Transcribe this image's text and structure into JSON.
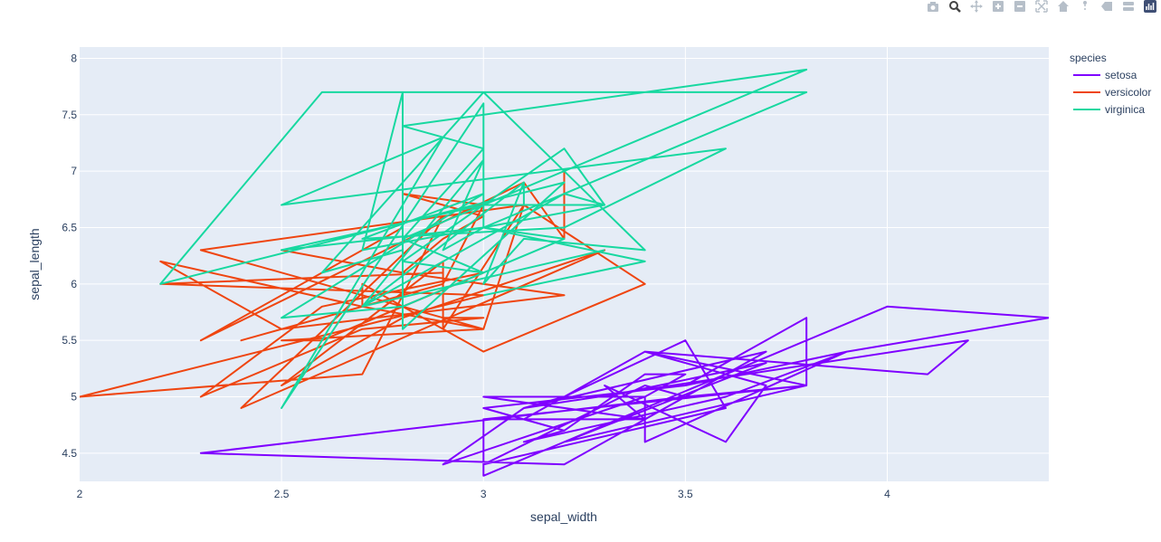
{
  "modebar": {
    "buttons": [
      {
        "icon": "camera-icon"
      },
      {
        "icon": "zoom-icon"
      },
      {
        "icon": "pan-icon"
      },
      {
        "icon": "zoom-in-icon"
      },
      {
        "icon": "zoom-out-icon"
      },
      {
        "icon": "autoscale-icon"
      },
      {
        "icon": "reset-axes-icon"
      },
      {
        "icon": "spike-lines-icon"
      },
      {
        "icon": "hover-closest-icon"
      },
      {
        "icon": "hover-compare-icon"
      },
      {
        "icon": "plotly-logo-icon"
      }
    ]
  },
  "chart_data": {
    "type": "line",
    "xlabel": "sepal_width",
    "ylabel": "sepal_length",
    "xlim": [
      2.0,
      4.4
    ],
    "ylim": [
      4.25,
      8.1
    ],
    "xticks": [
      2,
      2.5,
      3,
      3.5,
      4
    ],
    "yticks": [
      4.5,
      5,
      5.5,
      6,
      6.5,
      7,
      7.5,
      8
    ],
    "grid": true,
    "legend_position": "right",
    "legend_title": "species",
    "series": [
      {
        "name": "setosa",
        "color": "#7f00ff",
        "x": [
          3.5,
          3.0,
          3.2,
          3.1,
          3.6,
          3.9,
          3.4,
          3.4,
          2.9,
          3.1,
          3.7,
          3.4,
          3.0,
          3.0,
          4.0,
          4.4,
          3.9,
          3.5,
          3.8,
          3.8,
          3.4,
          3.7,
          3.6,
          3.3,
          3.4,
          3.0,
          3.4,
          3.5,
          3.4,
          3.2,
          3.1,
          3.4,
          4.1,
          4.2,
          3.1,
          3.2,
          3.5,
          3.6,
          3.0,
          3.4,
          3.5,
          2.3,
          3.2,
          3.5,
          3.8,
          3.0,
          3.8,
          3.2,
          3.7,
          3.3
        ],
        "y": [
          5.1,
          4.9,
          4.7,
          4.6,
          5.0,
          5.4,
          4.6,
          5.0,
          4.4,
          4.9,
          5.4,
          4.8,
          4.8,
          4.3,
          5.8,
          5.7,
          5.4,
          5.1,
          5.7,
          5.1,
          5.4,
          5.1,
          4.6,
          5.1,
          4.8,
          5.0,
          5.0,
          5.2,
          5.2,
          4.7,
          4.8,
          5.4,
          5.2,
          5.5,
          4.9,
          5.0,
          5.5,
          4.9,
          4.4,
          5.1,
          5.0,
          4.5,
          4.4,
          5.0,
          5.1,
          4.8,
          5.1,
          4.6,
          5.3,
          5.0
        ]
      },
      {
        "name": "versicolor",
        "color": "#ef4510",
        "x": [
          3.2,
          3.2,
          3.1,
          2.3,
          2.8,
          2.8,
          3.3,
          2.4,
          2.9,
          2.7,
          2.0,
          3.0,
          2.2,
          2.9,
          2.9,
          3.1,
          3.0,
          2.7,
          2.2,
          2.5,
          3.2,
          2.8,
          2.5,
          2.8,
          2.9,
          3.0,
          2.8,
          3.0,
          2.9,
          2.6,
          2.4,
          2.4,
          2.7,
          2.7,
          3.0,
          3.4,
          3.1,
          2.3,
          3.0,
          2.5,
          2.6,
          3.0,
          2.6,
          2.3,
          2.7,
          3.0,
          2.9,
          2.9,
          2.5,
          2.8
        ],
        "y": [
          7.0,
          6.4,
          6.9,
          5.5,
          6.5,
          5.7,
          6.3,
          4.9,
          6.6,
          5.2,
          5.0,
          5.9,
          6.0,
          6.1,
          5.6,
          6.7,
          5.6,
          5.8,
          6.2,
          5.6,
          5.9,
          6.1,
          6.3,
          6.1,
          6.4,
          6.6,
          6.8,
          6.7,
          6.0,
          5.7,
          5.5,
          5.5,
          5.8,
          6.0,
          5.4,
          6.0,
          6.7,
          6.3,
          5.6,
          5.5,
          5.5,
          6.1,
          5.8,
          5.0,
          5.6,
          5.7,
          5.7,
          6.2,
          5.1,
          5.7
        ]
      },
      {
        "name": "virginica",
        "color": "#17d8a0",
        "x": [
          3.3,
          2.7,
          3.0,
          2.9,
          3.0,
          3.0,
          2.5,
          2.9,
          2.5,
          3.6,
          3.2,
          2.7,
          3.0,
          2.5,
          2.8,
          3.2,
          3.0,
          3.8,
          2.6,
          2.2,
          3.2,
          2.8,
          2.8,
          2.7,
          3.3,
          3.2,
          2.8,
          3.0,
          2.8,
          3.0,
          2.8,
          3.8,
          2.8,
          2.8,
          2.6,
          3.0,
          3.4,
          3.1,
          3.0,
          3.1,
          3.1,
          3.1,
          2.7,
          3.2,
          3.3,
          3.0,
          2.5,
          3.0,
          3.4,
          3.0
        ],
        "y": [
          6.3,
          5.8,
          7.1,
          6.3,
          6.5,
          7.6,
          4.9,
          7.3,
          6.7,
          7.2,
          6.5,
          6.4,
          6.8,
          5.7,
          5.8,
          6.4,
          6.5,
          7.7,
          7.7,
          6.0,
          6.9,
          5.6,
          7.7,
          6.3,
          6.7,
          7.2,
          6.2,
          6.1,
          6.4,
          7.2,
          7.4,
          7.9,
          6.4,
          6.3,
          6.1,
          7.7,
          6.3,
          6.4,
          6.0,
          6.9,
          6.7,
          6.9,
          5.8,
          6.8,
          6.7,
          6.7,
          6.3,
          6.5,
          6.2,
          5.9
        ]
      }
    ]
  }
}
